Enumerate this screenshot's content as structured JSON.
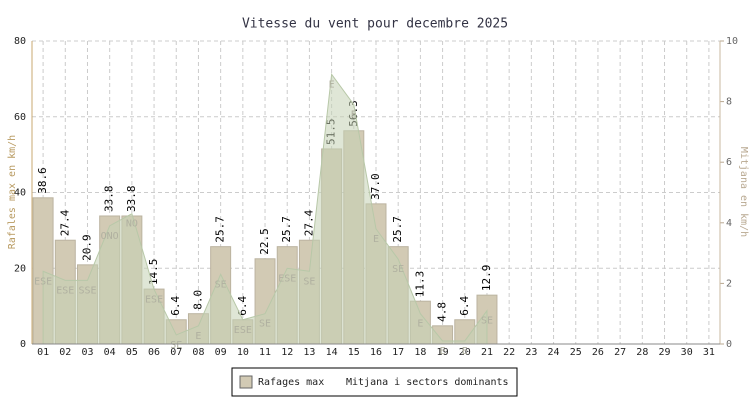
{
  "chart_data": {
    "type": "bar",
    "title": "Vitesse du vent pour decembre 2025",
    "y_label": "Rafales max en km/h",
    "y2_label": "Mitjana en km/h",
    "categories": [
      "01",
      "02",
      "03",
      "04",
      "05",
      "06",
      "07",
      "08",
      "09",
      "10",
      "11",
      "12",
      "13",
      "14",
      "15",
      "16",
      "17",
      "18",
      "19",
      "20",
      "21",
      "22",
      "23",
      "24",
      "25",
      "26",
      "27",
      "28",
      "29",
      "30",
      "31"
    ],
    "ylim": [
      0,
      80
    ],
    "yticks": [
      0,
      20,
      40,
      60,
      80
    ],
    "y2lim": [
      0,
      10
    ],
    "y2ticks": [
      0,
      2,
      4,
      6,
      8,
      10
    ],
    "grid": true,
    "legend": "bottom",
    "series": [
      {
        "name": "Rafages max",
        "color": "#d2cab4",
        "values": [
          38.6,
          27.4,
          20.9,
          33.8,
          33.8,
          14.5,
          6.4,
          8.0,
          25.7,
          6.4,
          22.5,
          25.7,
          27.4,
          51.5,
          56.3,
          37.0,
          25.7,
          11.3,
          4.8,
          6.4,
          12.9,
          null,
          null,
          null,
          null,
          null,
          null,
          null,
          null,
          null,
          null
        ],
        "value_labels": [
          "38.6",
          "27.4",
          "20.9",
          "33.8",
          "33.8",
          "14.5",
          "6.4",
          "8.0",
          "25.7",
          "6.4",
          "22.5",
          "25.7",
          "27.4",
          "51.5",
          "56.3",
          "37.0",
          "25.7",
          "11.3",
          "4.8",
          "6.4",
          "12.9",
          null,
          null,
          null,
          null,
          null,
          null,
          null,
          null,
          null,
          null
        ]
      },
      {
        "name": "Mitjana i sectors dominants",
        "color": "#c4d2b4",
        "axis": "y2",
        "values": [
          2.4,
          2.1,
          2.1,
          3.9,
          4.3,
          1.8,
          0.3,
          0.6,
          2.3,
          0.8,
          1.0,
          2.5,
          2.4,
          8.9,
          7.9,
          3.8,
          2.8,
          1.0,
          0.1,
          0.1,
          1.1,
          null,
          null,
          null,
          null,
          null,
          null,
          null,
          null,
          null,
          null
        ],
        "labels": [
          "ESE",
          "ESE",
          "SSE",
          "ONO",
          "NO",
          "ESE",
          "SE",
          "E",
          "SE",
          "ESE",
          "SE",
          "ESE",
          "SE",
          "E",
          "E",
          "E",
          "SE",
          "E",
          "E",
          "E",
          "SE",
          null,
          null,
          null,
          null,
          null,
          null,
          null,
          null,
          null,
          null
        ]
      }
    ]
  }
}
